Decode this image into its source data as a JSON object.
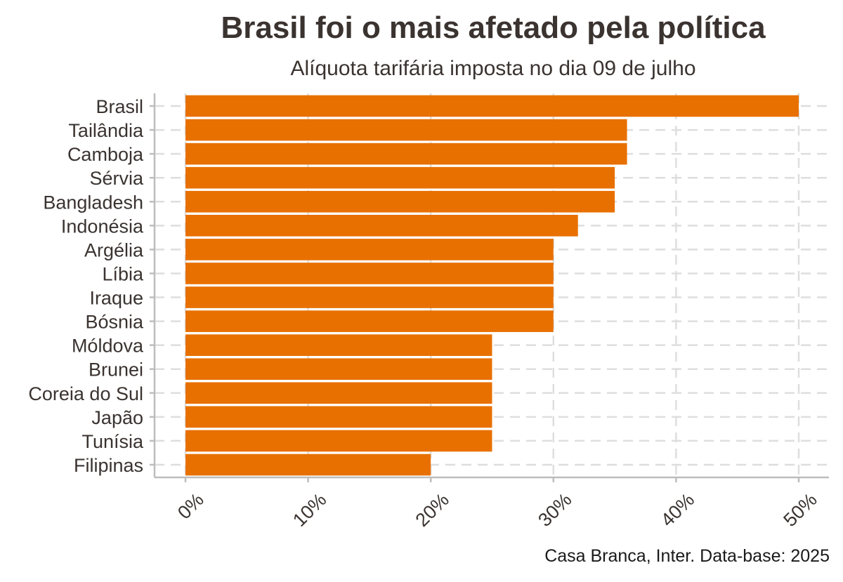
{
  "chart_data": {
    "type": "bar",
    "orientation": "horizontal",
    "title": "Brasil foi o mais afetado pela política",
    "subtitle": "Alíquota tarifária imposta no dia 09 de julho",
    "caption": "Casa Branca, Inter. Data-base: 2025",
    "categories": [
      "Brasil",
      "Tailândia",
      "Camboja",
      "Sérvia",
      "Bangladesh",
      "Indonésia",
      "Argélia",
      "Líbia",
      "Iraque",
      "Bósnia",
      "Móldova",
      "Brunei",
      "Coreia do Sul",
      "Japão",
      "Tunísia",
      "Filipinas"
    ],
    "values": [
      50,
      36,
      36,
      35,
      35,
      32,
      30,
      30,
      30,
      30,
      25,
      25,
      25,
      25,
      25,
      20
    ],
    "x_ticks": [
      "0%",
      "10%",
      "20%",
      "30%",
      "40%",
      "50%"
    ],
    "x_tick_values": [
      0,
      10,
      20,
      30,
      40,
      50
    ],
    "xlim": [
      0,
      50
    ],
    "xlabel": "",
    "ylabel": "",
    "grid": "dashed",
    "bar_color": "#e87000",
    "grid_color": "#dedede",
    "axis_color": "#bdbdbd"
  }
}
